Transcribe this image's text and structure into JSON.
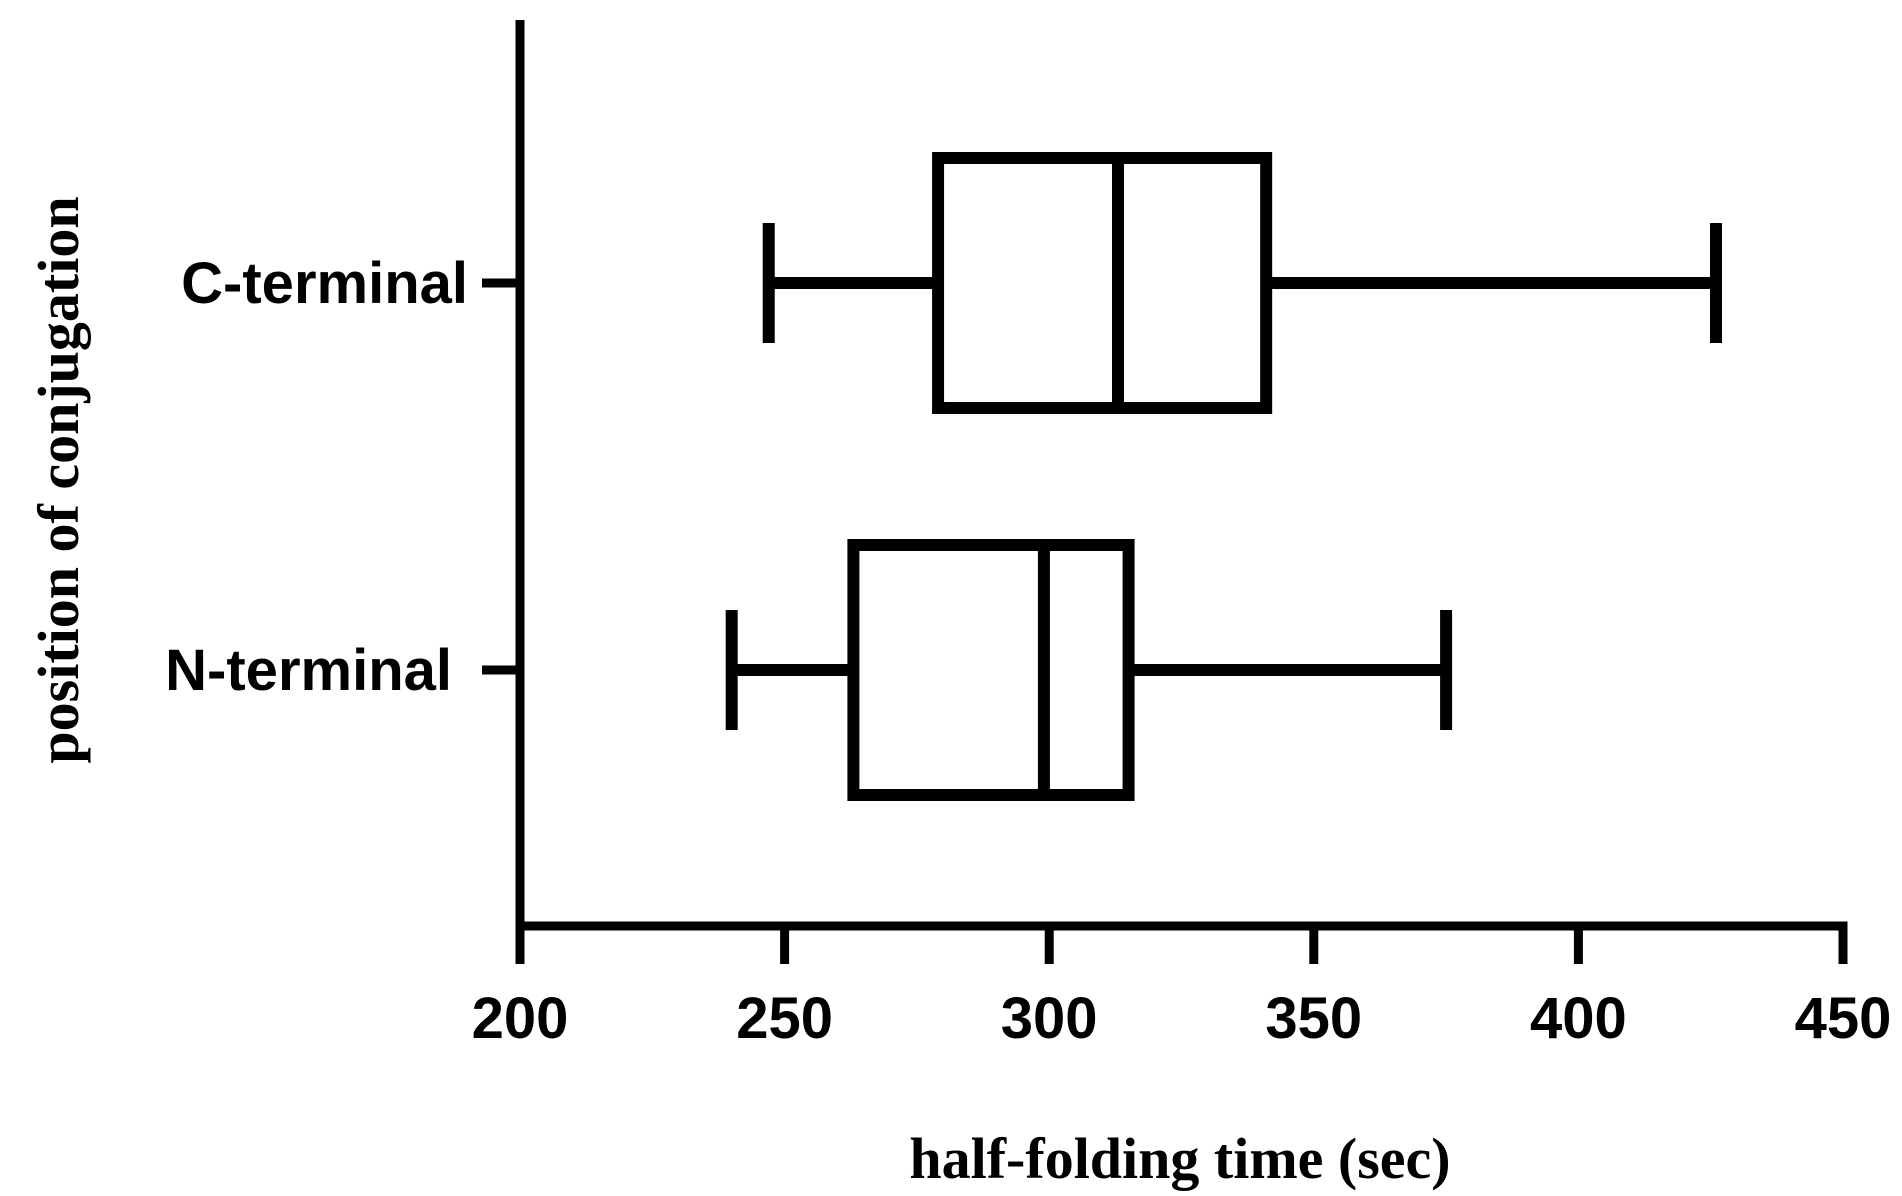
{
  "chart_data": {
    "type": "boxplot",
    "orientation": "horizontal",
    "title": "",
    "xlabel": "half-folding time (sec)",
    "ylabel": "position of conjugation",
    "xlim": [
      200,
      450
    ],
    "xticks": [
      200,
      250,
      300,
      350,
      400,
      450
    ],
    "xtick_labels": [
      "200",
      "250",
      "300",
      "350",
      "400",
      "450"
    ],
    "categories": [
      "C-terminal",
      "N-terminal"
    ],
    "boxes": [
      {
        "category": "C-terminal",
        "min": 247,
        "q1": 279,
        "median": 313,
        "q3": 341,
        "max": 426
      },
      {
        "category": "N-terminal",
        "min": 240,
        "q1": 263,
        "median": 299,
        "q3": 315,
        "max": 375
      }
    ],
    "grid": false,
    "legend": "none",
    "colors": {
      "stroke": "#000000",
      "fill": "#ffffff",
      "background": "#ffffff"
    }
  }
}
